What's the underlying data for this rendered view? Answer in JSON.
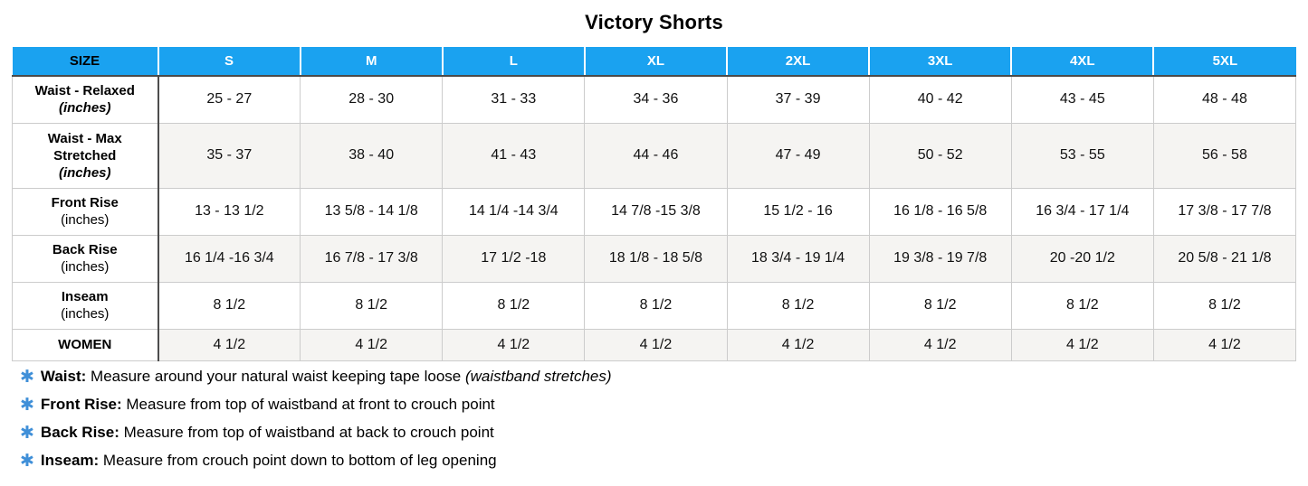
{
  "title": "Victory Shorts",
  "table": {
    "columns": [
      "SIZE",
      "S",
      "M",
      "L",
      "XL",
      "2XL",
      "3XL",
      "4XL",
      "5XL"
    ],
    "rows": [
      {
        "name": "waist-relaxed",
        "label_lines": [
          {
            "t": "Waist - Relaxed",
            "b": true
          },
          {
            "t": "(inches)",
            "b": true,
            "i": true
          }
        ],
        "values": [
          "25 - 27",
          "28 - 30",
          "31 - 33",
          "34 - 36",
          "37 - 39",
          "40 - 42",
          "43 - 45",
          "48 - 48"
        ]
      },
      {
        "name": "waist-max-stretched",
        "label_lines": [
          {
            "t": "Waist - Max",
            "b": true
          },
          {
            "t": "Stretched",
            "b": true
          },
          {
            "t": "(inches)",
            "b": true,
            "i": true
          }
        ],
        "values": [
          "35 - 37",
          "38 - 40",
          "41 - 43",
          "44 - 46",
          "47 - 49",
          "50 - 52",
          "53 - 55",
          "56 - 58"
        ]
      },
      {
        "name": "front-rise",
        "label_lines": [
          {
            "t": "Front Rise",
            "b": true
          },
          {
            "t": "(inches)"
          }
        ],
        "values": [
          "13 - 13 1/2",
          "13 5/8 - 14 1/8",
          "14 1/4 -14 3/4",
          "14 7/8 -15 3/8",
          "15 1/2 - 16",
          "16 1/8 - 16 5/8",
          "16 3/4 - 17 1/4",
          "17 3/8 - 17 7/8"
        ]
      },
      {
        "name": "back-rise",
        "label_lines": [
          {
            "t": "Back Rise",
            "b": true
          },
          {
            "t": "(inches)"
          }
        ],
        "values": [
          "16 1/4 -16 3/4",
          "16 7/8 - 17 3/8",
          "17 1/2 -18",
          "18 1/8 - 18 5/8",
          "18 3/4 - 19 1/4",
          "19 3/8 - 19 7/8",
          "20 -20 1/2",
          "20 5/8 - 21 1/8"
        ]
      },
      {
        "name": "inseam",
        "label_lines": [
          {
            "t": "Inseam",
            "b": true
          },
          {
            "t": "(inches)"
          }
        ],
        "values": [
          "8 1/2",
          "8 1/2",
          "8 1/2",
          "8 1/2",
          "8 1/2",
          "8 1/2",
          "8 1/2",
          "8 1/2"
        ]
      },
      {
        "name": "women",
        "label_lines": [
          {
            "t": "WOMEN",
            "b": true
          }
        ],
        "values": [
          "4 1/2",
          "4 1/2",
          "4 1/2",
          "4 1/2",
          "4 1/2",
          "4 1/2",
          "4 1/2",
          "4 1/2"
        ]
      }
    ]
  },
  "footnotes": [
    {
      "icon": "✱",
      "segments": [
        {
          "t": "Waist:",
          "b": true
        },
        {
          "t": " Measure around your natural waist keeping tape loose "
        },
        {
          "t": "(waistband stretches)",
          "i": true
        }
      ]
    },
    {
      "icon": "✱",
      "segments": [
        {
          "t": "Front Rise:",
          "b": true
        },
        {
          "t": " Measure from top of waistband at front to crouch point"
        }
      ]
    },
    {
      "icon": "✱",
      "segments": [
        {
          "t": "Back Rise:",
          "b": true
        },
        {
          "t": " Measure from top of waistband at back to crouch point"
        }
      ]
    },
    {
      "icon": "✱",
      "segments": [
        {
          "t": "Inseam:",
          "b": true
        },
        {
          "t": " Measure from crouch point down to bottom of leg opening"
        }
      ]
    }
  ],
  "colors": {
    "header_background": "#1AA2F0",
    "header_text": "#FFFFFF",
    "size_header_text": "#000000",
    "asterisk_blue": "#3F8FD8",
    "alt_row_background": "#F5F4F2",
    "dark_border": "#4A4A4A",
    "light_border": "#CCCCCC"
  }
}
